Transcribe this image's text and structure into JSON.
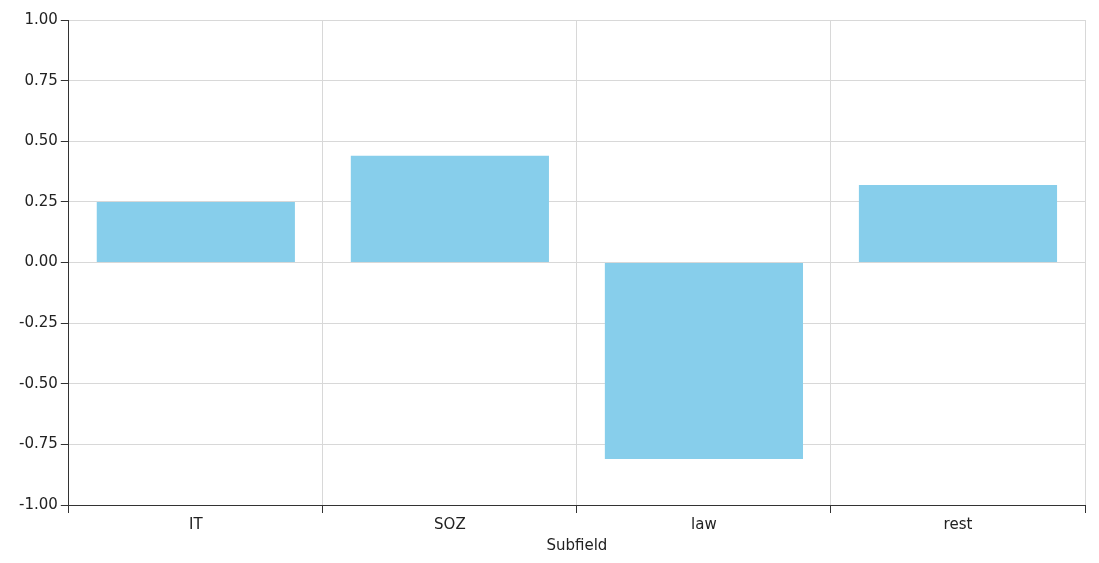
{
  "chart_data": {
    "type": "bar",
    "xlabel": "Subfield",
    "categories": [
      "IT",
      "SOZ",
      "law",
      "rest"
    ],
    "values": [
      0.25,
      0.44,
      -0.81,
      0.32
    ],
    "color": "#87ceeb",
    "ylim": [
      -1,
      1
    ],
    "yticks": [
      {
        "value": -1,
        "label": "-1.00"
      },
      {
        "value": -0.75,
        "label": "-0.75"
      },
      {
        "value": -0.5,
        "label": "-0.50"
      },
      {
        "value": -0.25,
        "label": "-0.25"
      },
      {
        "value": 0,
        "label": "0.00"
      },
      {
        "value": 0.25,
        "label": "0.25"
      },
      {
        "value": 0.5,
        "label": "0.50"
      },
      {
        "value": 0.75,
        "label": "0.75"
      },
      {
        "value": 1,
        "label": "1.00"
      }
    ],
    "grid": true
  }
}
